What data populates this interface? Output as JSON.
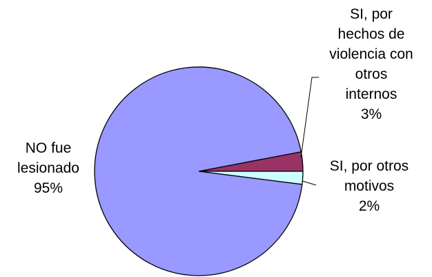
{
  "chart_data": {
    "type": "pie",
    "title": "",
    "slices": [
      {
        "label_lines": [
          "SI, por",
          "hechos de",
          "violencia con",
          "otros",
          "internos"
        ],
        "value": 3,
        "value_label": "3%",
        "color": "#993366"
      },
      {
        "label_lines": [
          "SI, por otros",
          "motivos"
        ],
        "value": 2,
        "value_label": "2%",
        "color": "#ccffff"
      },
      {
        "label_lines": [
          "NO fue",
          "lesionado"
        ],
        "value": 95,
        "value_label": "95%",
        "color": "#9999ff"
      }
    ],
    "legend": "none",
    "border_color": "#000000"
  }
}
